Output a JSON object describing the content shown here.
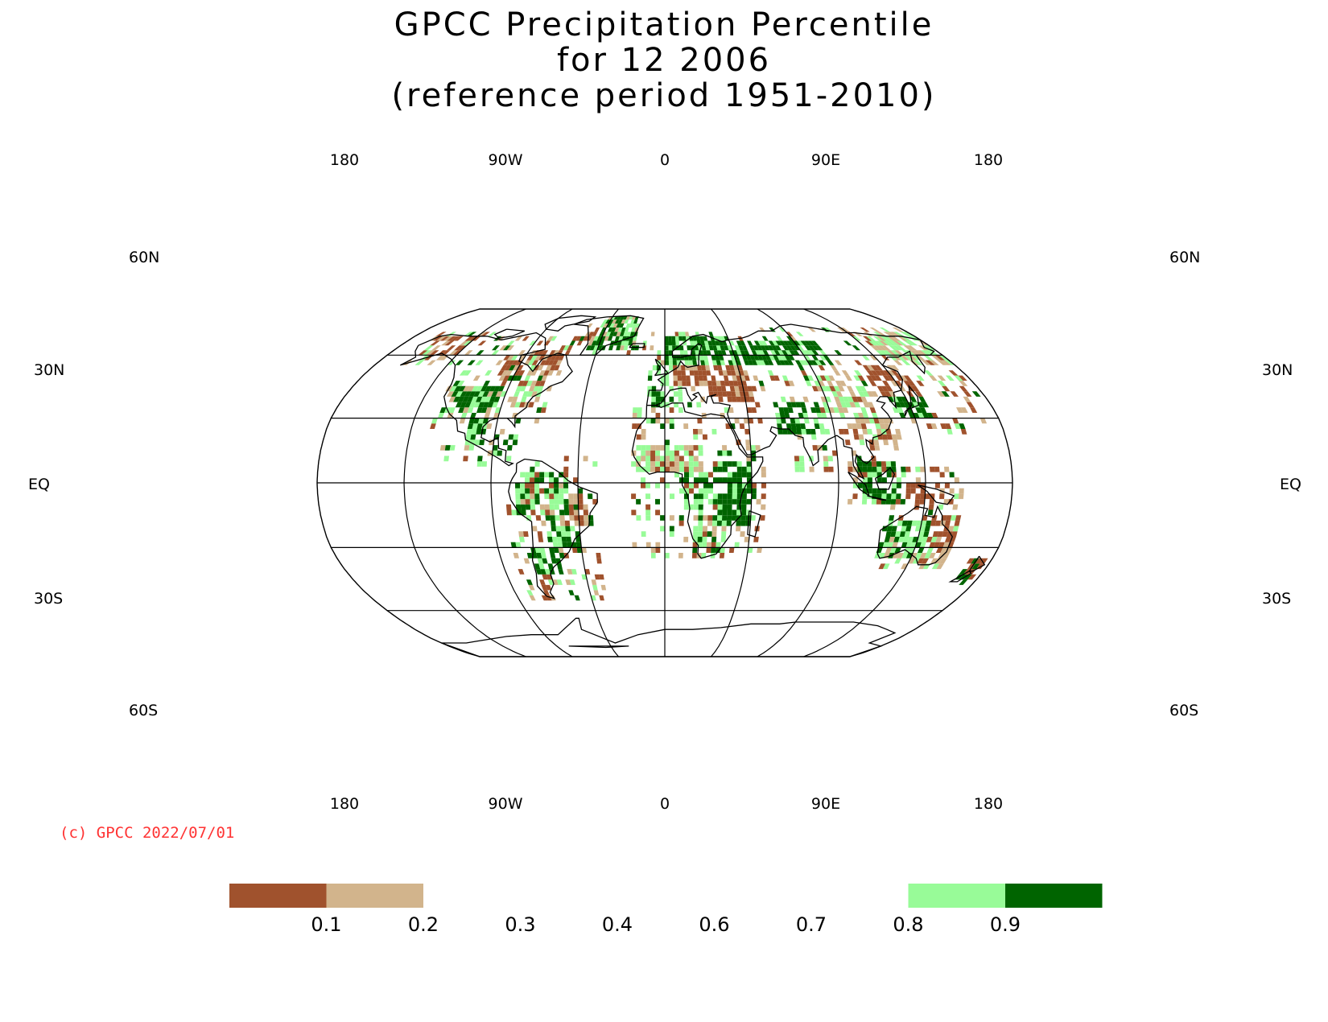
{
  "title": {
    "line1": "GPCC Precipitation Percentile",
    "line2": "for 12 2006",
    "line3": "(reference period 1951-2010)"
  },
  "map": {
    "projection": "robinson",
    "lon_labels": [
      "180",
      "90W",
      "0",
      "90E",
      "180"
    ],
    "lat_labels": {
      "n60": "60N",
      "n30": "30N",
      "eq": "EQ",
      "s30": "30S",
      "s60": "60S"
    },
    "colors": {
      "frame": "#000000",
      "coast": "#000000"
    }
  },
  "copyright": {
    "text": "(c) GPCC 2022/07/01",
    "color": "#ff3333"
  },
  "legend": {
    "bins": [
      {
        "label": "<0.1",
        "color": "#a0522d"
      },
      {
        "label": "0.1-0.2",
        "color": "#d2b48c"
      },
      {
        "label": "0.2-0.3",
        "color": "#ffffff"
      },
      {
        "label": "0.3-0.4",
        "color": "#ffffff"
      },
      {
        "label": "0.4-0.6",
        "color": "#ffffff"
      },
      {
        "label": "0.6-0.7",
        "color": "#ffffff"
      },
      {
        "label": "0.7-0.8",
        "color": "#ffffff"
      },
      {
        "label": "0.8-0.9",
        "color": "#98fb98"
      },
      {
        "label": ">0.9",
        "color": "#006400"
      }
    ],
    "ticks": [
      "0.1",
      "0.2",
      "0.3",
      "0.4",
      "0.6",
      "0.7",
      "0.8",
      "0.9"
    ]
  }
}
